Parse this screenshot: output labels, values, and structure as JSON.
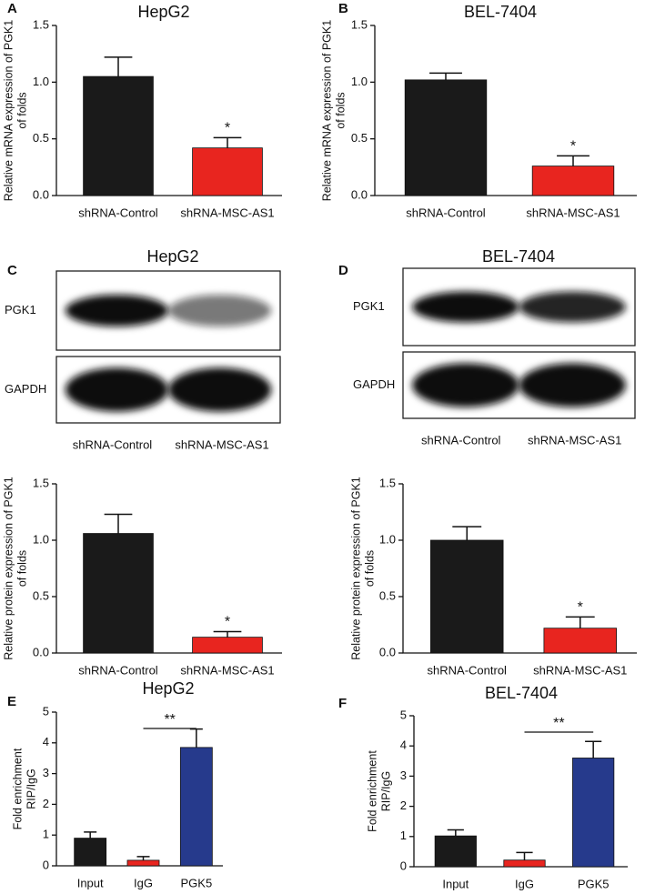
{
  "chart_data": [
    {
      "type": "bar",
      "panel": "A",
      "title": "HepG2",
      "ylabel": [
        "Relative mRNA  expression of PGK1",
        "of folds"
      ],
      "categories": [
        "shRNA-Control",
        "shRNA-MSC-AS1"
      ],
      "values": [
        1.05,
        0.42
      ],
      "errors": [
        0.17,
        0.09
      ],
      "colors": [
        "#1a1a1a",
        "#e8251f"
      ],
      "ylim": [
        0,
        1.5
      ],
      "yticks": [
        {
          "value": 0,
          "label": "0.0"
        },
        0.5,
        {
          "value": 1,
          "label": "1.0"
        },
        1.5
      ],
      "annotation": "*"
    },
    {
      "type": "bar",
      "panel": "B",
      "title": "BEL-7404",
      "ylabel": [
        "Relative mRNA  expression of PGK1",
        "of folds"
      ],
      "categories": [
        "shRNA-Control",
        "shRNA-MSC-AS1"
      ],
      "values": [
        1.02,
        0.26
      ],
      "errors": [
        0.06,
        0.09
      ],
      "colors": [
        "#1a1a1a",
        "#e8251f"
      ],
      "ylim": [
        0,
        1.5
      ],
      "yticks": [
        {
          "value": 0,
          "label": "0.0"
        },
        0.5,
        {
          "value": 1,
          "label": "1.0"
        },
        1.5
      ],
      "annotation": "*"
    },
    {
      "type": "bar",
      "ylabel": [
        "Relative protein  expression of PGK1",
        "of folds"
      ],
      "categories": [
        "shRNA-Control",
        "shRNA-MSC-AS1"
      ],
      "values": [
        1.06,
        0.14
      ],
      "errors": [
        0.17,
        0.05
      ],
      "colors": [
        "#1a1a1a",
        "#e8251f"
      ],
      "ylim": [
        0,
        1.5
      ],
      "yticks": [
        {
          "value": 0,
          "label": "0.0"
        },
        0.5,
        {
          "value": 1,
          "label": "1.0"
        },
        1.5
      ],
      "annotation": "*"
    },
    {
      "type": "bar",
      "ylabel": [
        "Relative protein  expression of PGK1",
        "of folds"
      ],
      "categories": [
        "shRNA-Control",
        "shRNA-MSC-AS1"
      ],
      "values": [
        1.0,
        0.22
      ],
      "errors": [
        0.12,
        0.1
      ],
      "colors": [
        "#1a1a1a",
        "#e8251f"
      ],
      "ylim": [
        0,
        1.5
      ],
      "yticks": [
        {
          "value": 0,
          "label": "0.0"
        },
        0.5,
        {
          "value": 1,
          "label": "1.0"
        },
        1.5
      ],
      "annotation": "*"
    },
    {
      "type": "bar",
      "panel": "E",
      "title": "HepG2",
      "ylabel": [
        "Fold enrichment",
        "RIP/IgG"
      ],
      "categories": [
        "Input",
        "IgG",
        "PGK5"
      ],
      "values": [
        0.9,
        0.18,
        3.85
      ],
      "errors": [
        0.2,
        0.12,
        0.6
      ],
      "colors": [
        "#1a1a1a",
        "#e8251f",
        "#263a8c"
      ],
      "ylim": [
        0,
        5
      ],
      "yticks": [
        0,
        1,
        2,
        3,
        4,
        5
      ],
      "annotation": "**"
    },
    {
      "type": "bar",
      "panel": "F",
      "title": "BEL-7404",
      "ylabel": [
        "Fold enrichment",
        "RIP/IgG"
      ],
      "categories": [
        "Input",
        "IgG",
        "PGK5"
      ],
      "values": [
        1.02,
        0.22,
        3.6
      ],
      "errors": [
        0.2,
        0.25,
        0.55
      ],
      "colors": [
        "#1a1a1a",
        "#e8251f",
        "#263a8c"
      ],
      "ylim": [
        0,
        5
      ],
      "yticks": [
        0,
        1,
        2,
        3,
        4,
        5
      ],
      "annotation": "**"
    }
  ],
  "blots": [
    {
      "panel": "C",
      "title": "HepG2",
      "rows": [
        "PGK1",
        "GAPDH"
      ],
      "categories": [
        "shRNA-Control",
        "shRNA-MSC-AS1"
      ]
    },
    {
      "panel": "D",
      "title": "BEL-7404",
      "rows": [
        "PGK1",
        "GAPDH"
      ],
      "categories": [
        "shRNA-Control",
        "shRNA-MSC-AS1"
      ]
    }
  ]
}
